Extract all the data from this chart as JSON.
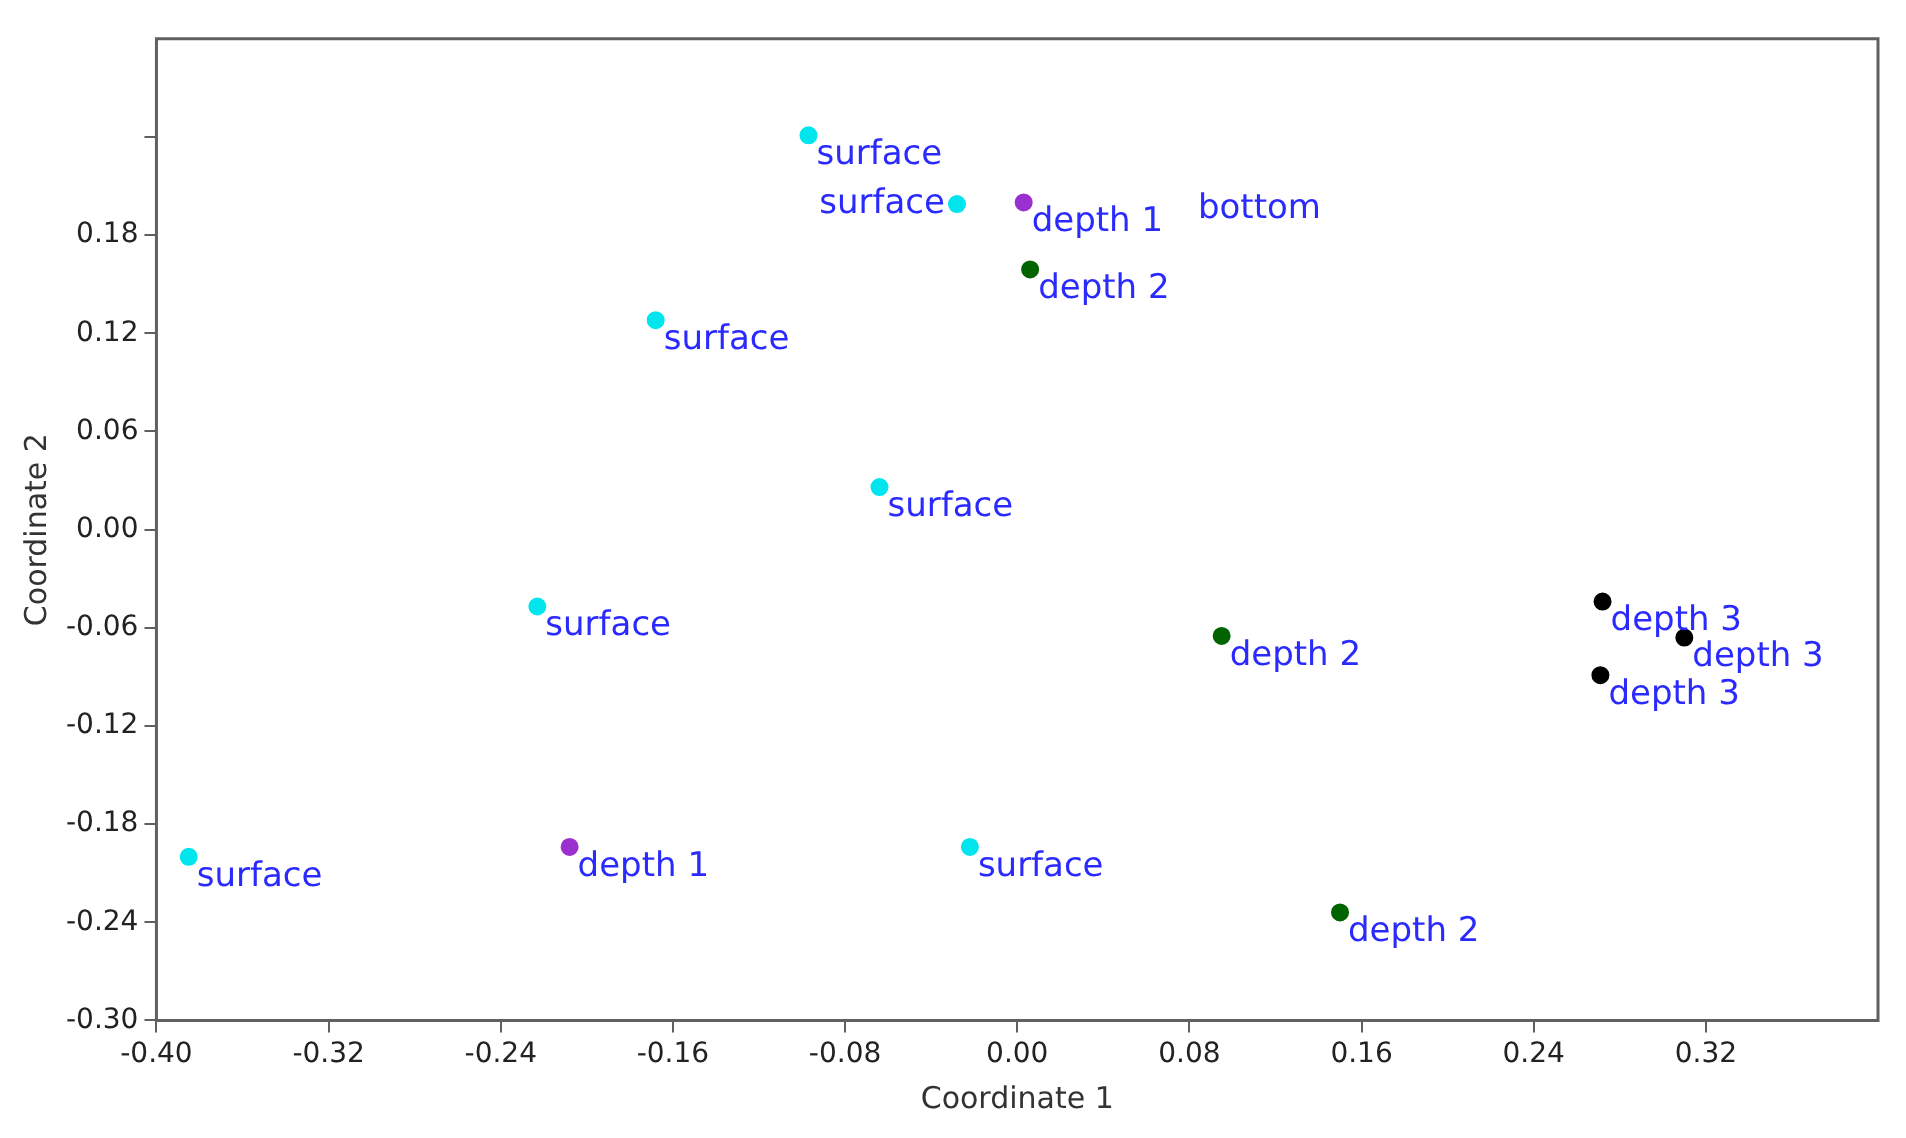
{
  "chart_data": {
    "type": "scatter",
    "xlabel": "Coordinate 1",
    "ylabel": "Coordinate 2",
    "xlim": [
      -0.4,
      0.4
    ],
    "xticks": [
      {
        "value": -0.4,
        "label": "-0.40"
      },
      -0.32,
      -0.24,
      -0.16,
      -0.08,
      {
        "value": 0,
        "label": "0.00"
      },
      0.08,
      0.16,
      0.24,
      0.32
    ],
    "ylim": [
      -0.3,
      0.3
    ],
    "yticks": [
      {
        "value": -0.3,
        "label": "-0.30"
      },
      -0.24,
      -0.18,
      -0.12,
      -0.06,
      {
        "value": 0,
        "label": "0.00"
      },
      0.06,
      0.12,
      0.18,
      {
        "value": 0.24,
        "label": null
      }
    ],
    "marker": "circle",
    "legend": false,
    "series": [
      {
        "name": "surface",
        "color": "#00e5ee",
        "x": [
          -0.097,
          -0.028,
          -0.168,
          -0.064,
          -0.223,
          -0.385,
          -0.022
        ],
        "values": [
          0.241,
          0.199,
          0.128,
          0.026,
          -0.047,
          -0.2,
          -0.194
        ]
      },
      {
        "name": "depth 1",
        "color": "#9b30d0",
        "x": [
          0.003,
          -0.208
        ],
        "values": [
          0.2,
          -0.194
        ]
      },
      {
        "name": "depth 2",
        "color": "#006400",
        "x": [
          0.006,
          0.095,
          0.15
        ],
        "values": [
          0.159,
          -0.065,
          -0.234
        ]
      },
      {
        "name": "depth 3",
        "color": "#000000",
        "x": [
          0.272,
          0.31,
          0.271
        ],
        "values": [
          -0.044,
          -0.066,
          -0.089
        ]
      }
    ],
    "annotations": [
      "bottom"
    ]
  }
}
